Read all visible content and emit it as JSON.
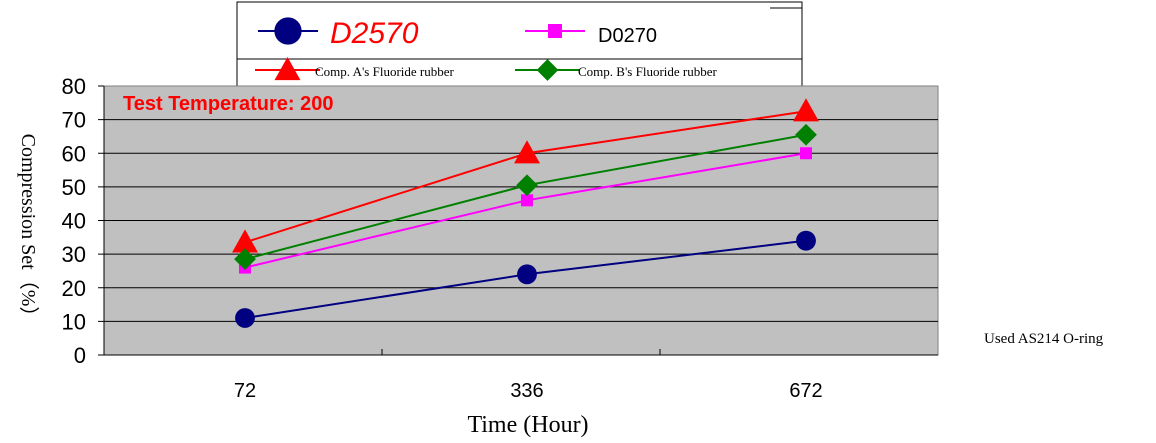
{
  "chart_data": {
    "type": "line",
    "categories": [
      "72",
      "336",
      "672"
    ],
    "series": [
      {
        "name": "D2570",
        "values": [
          11,
          24,
          34
        ],
        "color": "#000080",
        "marker": "circle"
      },
      {
        "name": "D0270",
        "values": [
          26,
          46,
          60
        ],
        "color": "#ff00ff",
        "marker": "square"
      },
      {
        "name": "Comp. A's Fluoride rubber",
        "values": [
          33.5,
          60,
          72.5
        ],
        "color": "#ff0000",
        "marker": "triangle"
      },
      {
        "name": "Comp. B's Fluoride rubber",
        "values": [
          28.5,
          50.5,
          65.5
        ],
        "color": "#008000",
        "marker": "diamond"
      }
    ],
    "xlabel": "Time (Hour)",
    "ylabel": "Compression Set（%）",
    "ylim": [
      0,
      80
    ],
    "yticks": [
      "0",
      "10",
      "20",
      "30",
      "40",
      "50",
      "60",
      "70",
      "80"
    ],
    "annotation": "Test Temperature: 200",
    "note": "Used AS214 O-ring",
    "plot_background": "#c0c0c0",
    "grid": true,
    "legend_position": "top"
  }
}
